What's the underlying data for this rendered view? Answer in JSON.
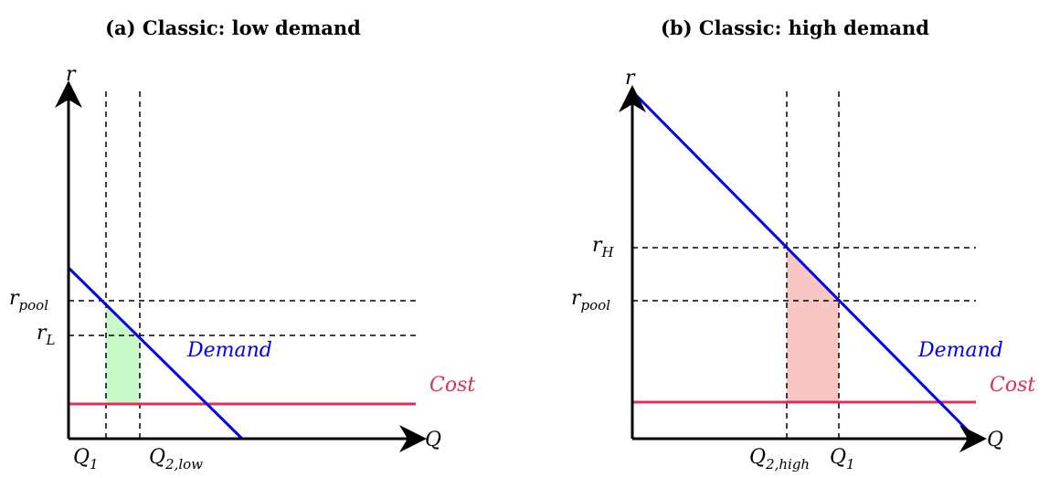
{
  "panels": [
    {
      "title": "(a) Classic: low demand",
      "y_axis_label": "r",
      "x_axis_label": "Q",
      "y_labels": [
        {
          "base": "r",
          "sub": "pool"
        },
        {
          "base": "r",
          "sub": "L"
        }
      ],
      "x_labels": [
        {
          "base": "Q",
          "sub": "1"
        },
        {
          "base": "Q",
          "sub": "2,low"
        }
      ],
      "demand_label": "Demand",
      "cost_label": "Cost"
    },
    {
      "title": "(b) Classic: high demand",
      "y_axis_label": "r",
      "x_axis_label": "Q",
      "y_labels": [
        {
          "base": "r",
          "sub": "H"
        },
        {
          "base": "r",
          "sub": "pool"
        }
      ],
      "x_labels": [
        {
          "base": "Q",
          "sub": "2,high"
        },
        {
          "base": "Q",
          "sub": "1"
        }
      ],
      "demand_label": "Demand",
      "cost_label": "Cost"
    }
  ]
}
